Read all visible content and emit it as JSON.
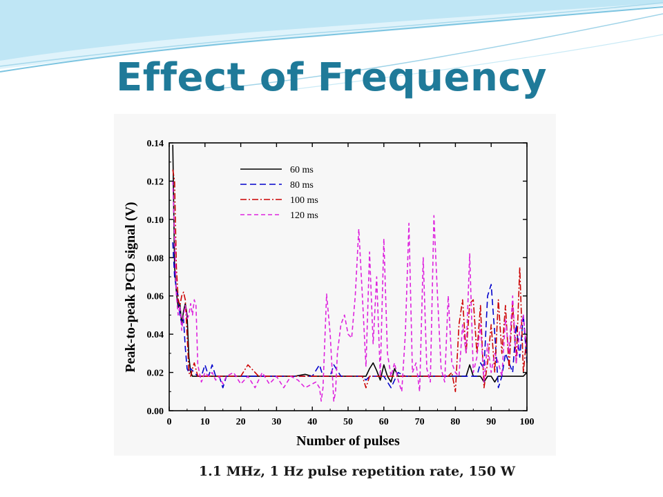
{
  "slide": {
    "title": "Effect of Frequency",
    "caption": "1.1 MHz, 1 Hz pulse repetition rate, 150 W"
  },
  "colors": {
    "title": "#1f7a99",
    "wave_light": "#bfe6f5",
    "wave_dark": "#7cc4e0",
    "series_60": "#000000",
    "series_80": "#0000cc",
    "series_100": "#cc0000",
    "series_120": "#dd22dd"
  },
  "chart_data": {
    "type": "line",
    "xlabel": "Number of pulses",
    "ylabel": "Peak-to-peak PCD signal  (V)",
    "xlim": [
      0,
      100
    ],
    "ylim": [
      0,
      0.14
    ],
    "xticks": [
      "0",
      "10",
      "20",
      "30",
      "40",
      "50",
      "60",
      "70",
      "80",
      "90",
      "100"
    ],
    "yticks": [
      "0.00",
      "0.02",
      "0.04",
      "0.06",
      "0.08",
      "0.10",
      "0.12",
      "0.14"
    ],
    "legend_position": "top-left",
    "series": [
      {
        "name": "60 ms",
        "style": "solid",
        "color": "#000000",
        "x": [
          1,
          1.5,
          2,
          2.5,
          3,
          3.5,
          4,
          4.5,
          5,
          5.5,
          6,
          6.5,
          7,
          8,
          9,
          10,
          12,
          14,
          16,
          18,
          20,
          25,
          30,
          35,
          38,
          40,
          45,
          50,
          52,
          54,
          55,
          56,
          57,
          58,
          59,
          60,
          61,
          62,
          63,
          64,
          65,
          66,
          68,
          70,
          72,
          74,
          76,
          78,
          80,
          81,
          82,
          83,
          84,
          85,
          86,
          87,
          88,
          89,
          90,
          91,
          92,
          93,
          94,
          95,
          96,
          97,
          98,
          99,
          100
        ],
        "y": [
          0.139,
          0.075,
          0.062,
          0.054,
          0.056,
          0.045,
          0.052,
          0.056,
          0.05,
          0.028,
          0.02,
          0.018,
          0.018,
          0.018,
          0.018,
          0.018,
          0.018,
          0.018,
          0.018,
          0.018,
          0.018,
          0.018,
          0.018,
          0.018,
          0.019,
          0.018,
          0.018,
          0.018,
          0.018,
          0.018,
          0.018,
          0.022,
          0.025,
          0.021,
          0.016,
          0.024,
          0.018,
          0.015,
          0.022,
          0.018,
          0.018,
          0.018,
          0.018,
          0.018,
          0.018,
          0.018,
          0.018,
          0.018,
          0.018,
          0.018,
          0.018,
          0.018,
          0.024,
          0.018,
          0.018,
          0.018,
          0.015,
          0.018,
          0.018,
          0.015,
          0.018,
          0.018,
          0.018,
          0.018,
          0.018,
          0.018,
          0.018,
          0.018,
          0.02
        ]
      },
      {
        "name": "80 ms",
        "style": "dash",
        "color": "#0000cc",
        "x": [
          1,
          1.5,
          2,
          2.5,
          3,
          3.5,
          4,
          4.5,
          5,
          5.5,
          6,
          7,
          8,
          9,
          10,
          11,
          12,
          13,
          14,
          15,
          16,
          18,
          20,
          25,
          30,
          35,
          40,
          42,
          43,
          45,
          46,
          48,
          50,
          52,
          54,
          55,
          56,
          57,
          58,
          59,
          60,
          62,
          64,
          66,
          68,
          70,
          72,
          74,
          76,
          78,
          80,
          82,
          84,
          86,
          87,
          88,
          89,
          90,
          91,
          92,
          93,
          94,
          95,
          96,
          97,
          98,
          99,
          100
        ],
        "y": [
          0.088,
          0.07,
          0.064,
          0.06,
          0.05,
          0.045,
          0.048,
          0.033,
          0.022,
          0.02,
          0.022,
          0.02,
          0.018,
          0.018,
          0.024,
          0.018,
          0.024,
          0.018,
          0.018,
          0.012,
          0.018,
          0.018,
          0.018,
          0.018,
          0.018,
          0.018,
          0.018,
          0.024,
          0.018,
          0.018,
          0.024,
          0.018,
          0.018,
          0.018,
          0.018,
          0.016,
          0.018,
          0.018,
          0.018,
          0.018,
          0.018,
          0.012,
          0.02,
          0.018,
          0.018,
          0.018,
          0.018,
          0.018,
          0.018,
          0.018,
          0.018,
          0.018,
          0.018,
          0.018,
          0.025,
          0.022,
          0.06,
          0.066,
          0.04,
          0.012,
          0.018,
          0.03,
          0.025,
          0.02,
          0.045,
          0.028,
          0.05,
          0.025
        ]
      },
      {
        "name": "100 ms",
        "style": "dashdot",
        "color": "#cc0000",
        "x": [
          1,
          1.5,
          2,
          2.5,
          3,
          3.5,
          4,
          4.5,
          5,
          5.5,
          6,
          6.5,
          7,
          8,
          9,
          10,
          12,
          14,
          16,
          18,
          20,
          22,
          25,
          30,
          35,
          40,
          42,
          45,
          50,
          52,
          54,
          55,
          56,
          58,
          60,
          62,
          64,
          66,
          68,
          70,
          72,
          74,
          75,
          76,
          78,
          79,
          80,
          81,
          82,
          83,
          84,
          85,
          86,
          87,
          88,
          89,
          90,
          91,
          92,
          93,
          94,
          95,
          96,
          97,
          98,
          99,
          100
        ],
        "y": [
          0.126,
          0.12,
          0.075,
          0.058,
          0.055,
          0.06,
          0.062,
          0.058,
          0.04,
          0.02,
          0.018,
          0.022,
          0.025,
          0.018,
          0.018,
          0.018,
          0.018,
          0.018,
          0.018,
          0.018,
          0.018,
          0.024,
          0.018,
          0.018,
          0.018,
          0.018,
          0.018,
          0.018,
          0.018,
          0.018,
          0.018,
          0.012,
          0.018,
          0.018,
          0.018,
          0.018,
          0.018,
          0.018,
          0.018,
          0.018,
          0.018,
          0.018,
          0.018,
          0.018,
          0.018,
          0.02,
          0.01,
          0.045,
          0.058,
          0.03,
          0.056,
          0.058,
          0.03,
          0.055,
          0.012,
          0.025,
          0.045,
          0.02,
          0.058,
          0.03,
          0.055,
          0.022,
          0.056,
          0.025,
          0.075,
          0.02,
          0.04
        ]
      },
      {
        "name": "120 ms",
        "style": "longdash",
        "color": "#dd22dd",
        "x": [
          1,
          1.5,
          2,
          2.5,
          3,
          3.5,
          4,
          4.5,
          5,
          5.5,
          6,
          6.5,
          7,
          7.5,
          8,
          9,
          10,
          11,
          12,
          13,
          14,
          15,
          16,
          18,
          20,
          22,
          24,
          26,
          28,
          30,
          32,
          34,
          36,
          38,
          40,
          41,
          42,
          42.5,
          43,
          44,
          45,
          46,
          46.5,
          47,
          48,
          49,
          50,
          51,
          52,
          53,
          54,
          55,
          56,
          57,
          58,
          59,
          60,
          61,
          62,
          63,
          64,
          65,
          66,
          67,
          68,
          69,
          70,
          71,
          72,
          73,
          74,
          75,
          76,
          77,
          78,
          79,
          80,
          81,
          82,
          83,
          84,
          85,
          86,
          87,
          88,
          89,
          90,
          91,
          92,
          93,
          94,
          95,
          96,
          97,
          98,
          99,
          100
        ],
        "y": [
          0.12,
          0.09,
          0.06,
          0.05,
          0.055,
          0.042,
          0.05,
          0.055,
          0.048,
          0.05,
          0.056,
          0.05,
          0.058,
          0.055,
          0.024,
          0.015,
          0.02,
          0.018,
          0.02,
          0.016,
          0.018,
          0.014,
          0.018,
          0.02,
          0.014,
          0.018,
          0.012,
          0.02,
          0.014,
          0.018,
          0.012,
          0.018,
          0.016,
          0.012,
          0.014,
          0.015,
          0.012,
          0.005,
          0.012,
          0.061,
          0.04,
          0.005,
          0.01,
          0.03,
          0.045,
          0.05,
          0.04,
          0.038,
          0.06,
          0.095,
          0.06,
          0.023,
          0.083,
          0.035,
          0.07,
          0.018,
          0.09,
          0.03,
          0.018,
          0.025,
          0.016,
          0.01,
          0.04,
          0.098,
          0.02,
          0.025,
          0.01,
          0.08,
          0.022,
          0.015,
          0.102,
          0.06,
          0.022,
          0.015,
          0.06,
          0.025,
          0.02,
          0.018,
          0.045,
          0.03,
          0.082,
          0.02,
          0.028,
          0.045,
          0.015,
          0.035,
          0.02,
          0.03,
          0.025,
          0.018,
          0.048,
          0.03,
          0.06,
          0.025,
          0.042,
          0.05,
          0.03
        ]
      }
    ]
  }
}
